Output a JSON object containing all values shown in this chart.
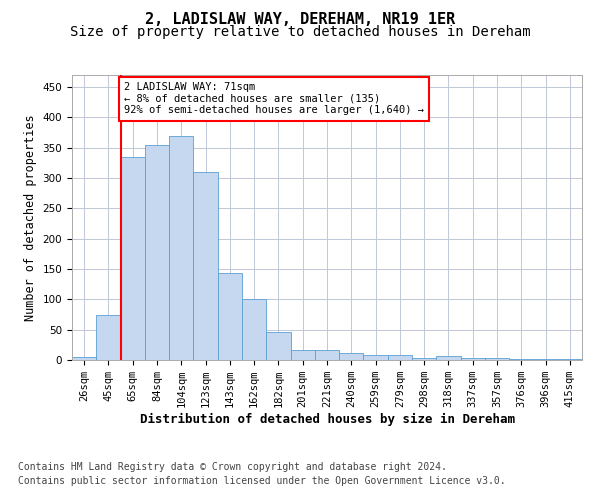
{
  "title": "2, LADISLAW WAY, DEREHAM, NR19 1ER",
  "subtitle": "Size of property relative to detached houses in Dereham",
  "xlabel": "Distribution of detached houses by size in Dereham",
  "ylabel": "Number of detached properties",
  "bar_color": "#c5d8f0",
  "bar_edge_color": "#5a9fd4",
  "categories": [
    "26sqm",
    "45sqm",
    "65sqm",
    "84sqm",
    "104sqm",
    "123sqm",
    "143sqm",
    "162sqm",
    "182sqm",
    "201sqm",
    "221sqm",
    "240sqm",
    "259sqm",
    "279sqm",
    "298sqm",
    "318sqm",
    "337sqm",
    "357sqm",
    "376sqm",
    "396sqm",
    "415sqm"
  ],
  "values": [
    5,
    75,
    335,
    355,
    370,
    310,
    143,
    100,
    46,
    17,
    17,
    11,
    9,
    8,
    4,
    6,
    4,
    4,
    1,
    2,
    1
  ],
  "ylim": [
    0,
    470
  ],
  "yticks": [
    0,
    50,
    100,
    150,
    200,
    250,
    300,
    350,
    400,
    450
  ],
  "red_line_index": 2,
  "annotation_text": "2 LADISLAW WAY: 71sqm\n← 8% of detached houses are smaller (135)\n92% of semi-detached houses are larger (1,640) →",
  "footer_line1": "Contains HM Land Registry data © Crown copyright and database right 2024.",
  "footer_line2": "Contains public sector information licensed under the Open Government Licence v3.0.",
  "bg_color": "#ffffff",
  "grid_color": "#c0c8d8",
  "title_fontsize": 11,
  "subtitle_fontsize": 10,
  "ylabel_fontsize": 8.5,
  "tick_fontsize": 7.5,
  "xlabel_fontsize": 9,
  "annotation_fontsize": 7.5,
  "footer_fontsize": 7.0
}
